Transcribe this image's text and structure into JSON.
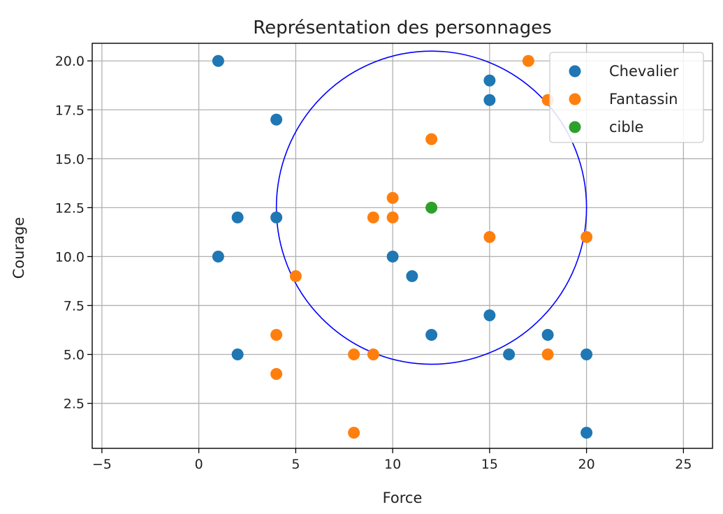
{
  "chart_data": {
    "type": "scatter",
    "title": "Représentation des personnages",
    "xlabel": "Force",
    "ylabel": "Courage",
    "xlim": [
      -5.5,
      26.5
    ],
    "ylim": [
      0.2,
      20.9
    ],
    "xticks": [
      -5,
      0,
      5,
      10,
      15,
      20,
      25
    ],
    "xtick_labels": [
      "−5",
      "0",
      "5",
      "10",
      "15",
      "20",
      "25"
    ],
    "yticks": [
      2.5,
      5.0,
      7.5,
      10.0,
      12.5,
      15.0,
      17.5,
      20.0
    ],
    "ytick_labels": [
      "2.5",
      "5.0",
      "7.5",
      "10.0",
      "12.5",
      "15.0",
      "17.5",
      "20.0"
    ],
    "grid": true,
    "legend_position": "top-right",
    "series": [
      {
        "name": "Chevalier",
        "color": "#1f77b4",
        "points": [
          [
            1,
            20
          ],
          [
            4,
            17
          ],
          [
            2,
            12
          ],
          [
            4,
            12
          ],
          [
            1,
            10
          ],
          [
            2,
            5
          ],
          [
            10,
            10
          ],
          [
            11,
            9
          ],
          [
            12,
            6
          ],
          [
            15,
            19
          ],
          [
            15,
            18
          ],
          [
            15,
            7
          ],
          [
            16,
            5
          ],
          [
            18,
            6
          ],
          [
            20,
            5
          ],
          [
            20,
            1
          ]
        ]
      },
      {
        "name": "Fantassin",
        "color": "#ff7f0e",
        "points": [
          [
            17,
            20
          ],
          [
            18,
            18
          ],
          [
            12,
            16
          ],
          [
            10,
            13
          ],
          [
            9,
            12
          ],
          [
            10,
            12
          ],
          [
            15,
            11
          ],
          [
            20,
            11
          ],
          [
            5,
            9
          ],
          [
            4,
            6
          ],
          [
            4,
            4
          ],
          [
            8,
            5
          ],
          [
            9,
            5
          ],
          [
            18,
            5
          ],
          [
            8,
            1
          ]
        ]
      },
      {
        "name": "cible",
        "color": "#2ca02c",
        "points": [
          [
            12,
            12.5
          ]
        ]
      }
    ],
    "annotations": [
      {
        "type": "circle",
        "center": [
          12,
          12.5
        ],
        "radius": 8,
        "color": "#0000ff"
      }
    ]
  }
}
